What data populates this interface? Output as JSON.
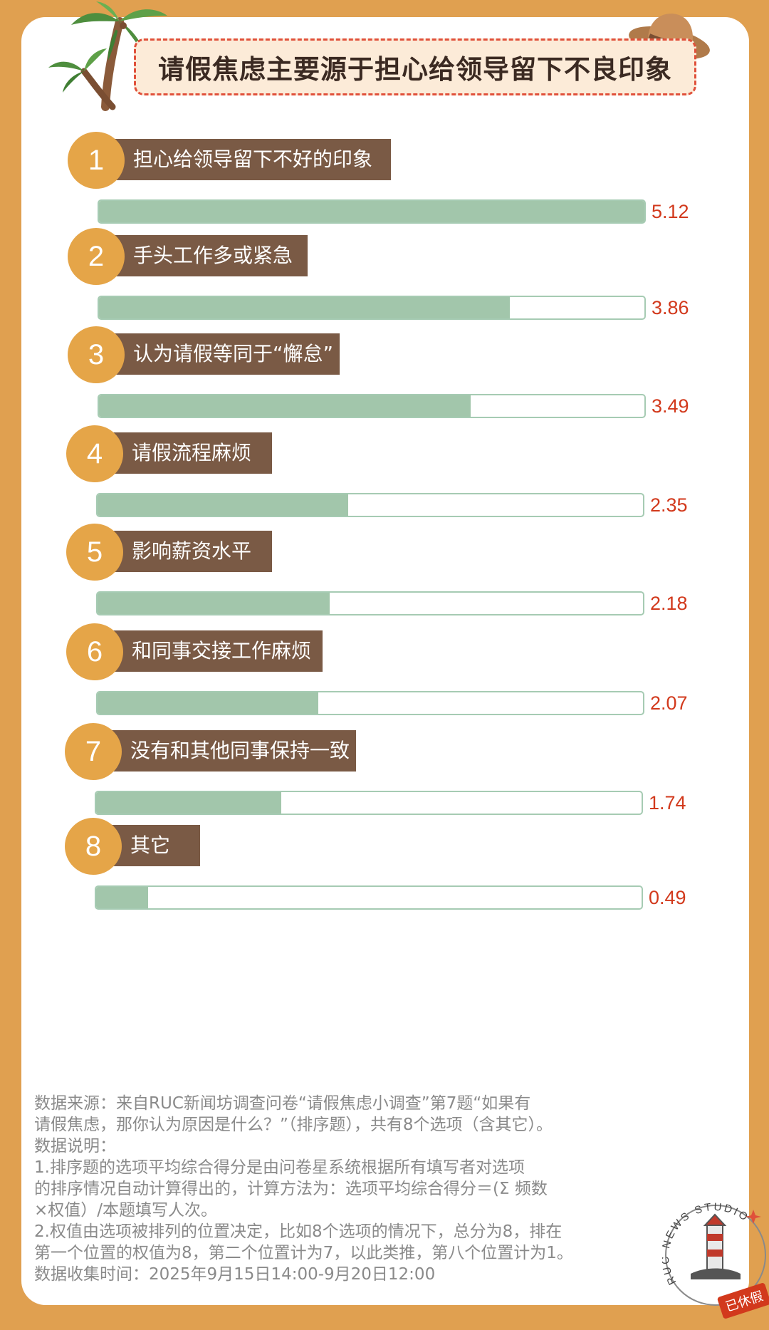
{
  "title": "请假焦虑主要源于担心给领导留下不良印象",
  "chart_data": {
    "type": "bar",
    "title": "请假焦虑主要源于担心给领导留下不良印象",
    "categories": [
      "担心给领导留下不好的印象",
      "手头工作多或紧急",
      "认为请假等同于“懈怠”",
      "请假流程麻烦",
      "影响薪资水平",
      "和同事交接工作麻烦",
      "没有和其他同事保持一致",
      "其它"
    ],
    "ranks": [
      "1",
      "2",
      "3",
      "4",
      "5",
      "6",
      "7",
      "8"
    ],
    "values": [
      5.12,
      3.86,
      3.49,
      2.35,
      2.18,
      2.07,
      1.74,
      0.49
    ],
    "value_labels": [
      "5.12",
      "3.86",
      "3.49",
      "2.35",
      "2.18",
      "2.07",
      "1.74",
      "0.49"
    ],
    "xlim": [
      0,
      5.12
    ],
    "colors": {
      "bar": "#A2C6AB",
      "track_border": "#A6CBB3",
      "value": "#D2391C",
      "label_bg": "#7A5A45",
      "rank_bg": "#E5A548"
    }
  },
  "notes": {
    "lines": [
      "数据来源：来自RUC新闻坊调查问卷“请假焦虑小调查”第7题“如果有",
      "请假焦虑，那你认为原因是什么？”（排序题），共有8个选项（含其它）。",
      "数据说明：",
      "1.排序题的选项平均综合得分是由问卷星系统根据所有填写者对选项",
      "的排序情况自动计算得出的，计算方法为：选项平均综合得分＝(Σ 频数",
      "×权值）/本题填写人次。",
      "2.权值由选项被排列的位置决定，比如8个选项的情况下，总分为8，排在",
      "第一个位置的权值为8，第二个位置计为7，以此类推，第八个位置计为1。",
      "数据收集时间：2025年9月15日14:00-9月20日12:00"
    ]
  },
  "stamp": {
    "ring_text": "RUC NEWS STUDIO",
    "tag": "已休假"
  },
  "decorations": [
    "palm-tree-icon",
    "straw-hat-icon",
    "lighthouse-icon"
  ]
}
